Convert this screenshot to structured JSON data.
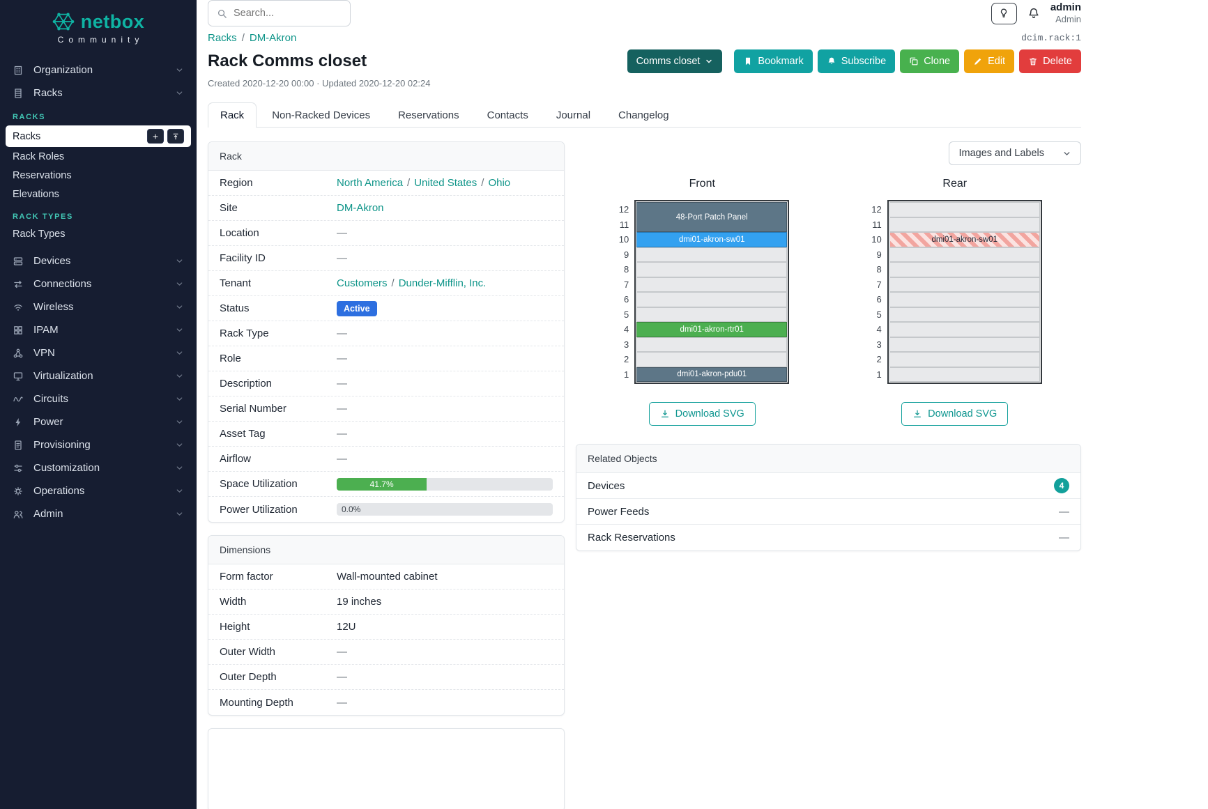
{
  "misc": {
    "slash": "/"
  },
  "brand": {
    "name": "netbox",
    "tagline": "Community"
  },
  "topbar": {
    "search_placeholder": "Search...",
    "user_name": "admin",
    "user_role": "Admin"
  },
  "sidebar": {
    "items": [
      {
        "key": "organization",
        "label": "Organization",
        "icon": "organization-icon"
      },
      {
        "key": "racks",
        "label": "Racks",
        "icon": "racks-icon"
      },
      {
        "key": "devices",
        "label": "Devices",
        "icon": "devices-icon"
      },
      {
        "key": "connections",
        "label": "Connections",
        "icon": "connections-icon"
      },
      {
        "key": "wireless",
        "label": "Wireless",
        "icon": "wireless-icon"
      },
      {
        "key": "ipam",
        "label": "IPAM",
        "icon": "ipam-icon"
      },
      {
        "key": "vpn",
        "label": "VPN",
        "icon": "vpn-icon"
      },
      {
        "key": "virtualization",
        "label": "Virtualization",
        "icon": "virtualization-icon"
      },
      {
        "key": "circuits",
        "label": "Circuits",
        "icon": "circuits-icon"
      },
      {
        "key": "power",
        "label": "Power",
        "icon": "power-icon"
      },
      {
        "key": "provisioning",
        "label": "Provisioning",
        "icon": "provisioning-icon"
      },
      {
        "key": "customization",
        "label": "Customization",
        "icon": "customization-icon"
      },
      {
        "key": "operations",
        "label": "Operations",
        "icon": "operations-icon"
      },
      {
        "key": "admin",
        "label": "Admin",
        "icon": "admin-icon"
      }
    ],
    "racks_submenu": {
      "groups": [
        {
          "header": "RACKS",
          "items": [
            {
              "label": "Racks",
              "active": true,
              "actions": true
            },
            {
              "label": "Rack Roles"
            },
            {
              "label": "Reservations"
            },
            {
              "label": "Elevations"
            }
          ]
        },
        {
          "header": "RACK TYPES",
          "items": [
            {
              "label": "Rack Types"
            }
          ]
        }
      ]
    }
  },
  "breadcrumb": {
    "items": [
      "Racks",
      "DM-Akron"
    ]
  },
  "page": {
    "title": "Rack Comms closet",
    "meta": "Created 2020-12-20 00:00 · Updated 2020-12-20 02:24",
    "object_ref": "dcim.rack:1"
  },
  "actions": {
    "context_label": "Comms closet",
    "bookmark": "Bookmark",
    "subscribe": "Subscribe",
    "clone": "Clone",
    "edit": "Edit",
    "delete": "Delete"
  },
  "tabs": [
    {
      "label": "Rack",
      "active": true
    },
    {
      "label": "Non-Racked Devices"
    },
    {
      "label": "Reservations"
    },
    {
      "label": "Contacts"
    },
    {
      "label": "Journal"
    },
    {
      "label": "Changelog"
    }
  ],
  "rack_panel": {
    "title": "Rack",
    "labels": {
      "region": "Region",
      "site": "Site",
      "location": "Location",
      "facility_id": "Facility ID",
      "tenant": "Tenant",
      "status": "Status",
      "rack_type": "Rack Type",
      "role": "Role",
      "description": "Description",
      "serial": "Serial Number",
      "asset_tag": "Asset Tag",
      "airflow": "Airflow",
      "space_util": "Space Utilization",
      "power_util": "Power Utilization"
    },
    "values": {
      "region_links": [
        "North America",
        "United States",
        "Ohio"
      ],
      "site_link": "DM-Akron",
      "location": "—",
      "facility_id": "—",
      "tenant_links": [
        "Customers",
        "Dunder-Mifflin, Inc."
      ],
      "status": "Active",
      "rack_type": "—",
      "role": "—",
      "description": "—",
      "serial": "—",
      "asset_tag": "—",
      "airflow": "—",
      "space_util_pct": 41.7,
      "space_util_label": "41.7%",
      "power_util_pct": 0.0,
      "power_util_label": "0.0%"
    }
  },
  "dimensions_panel": {
    "title": "Dimensions",
    "labels": {
      "form_factor": "Form factor",
      "width": "Width",
      "height": "Height",
      "outer_width": "Outer Width",
      "outer_depth": "Outer Depth",
      "mounting_depth": "Mounting Depth"
    },
    "values": {
      "form_factor": "Wall-mounted cabinet",
      "width": "19 inches",
      "height": "12U",
      "outer_width": "—",
      "outer_depth": "—",
      "mounting_depth": "—"
    }
  },
  "elevations": {
    "toggle_label": "Images and Labels",
    "download_label": "Download SVG",
    "front": {
      "title": "Front",
      "units_total": 12,
      "devices": [
        {
          "name": "48-Port Patch Panel",
          "top_unit": 12,
          "u_height": 2,
          "color": "#5d7687",
          "text_color": "#ffffff",
          "style": "solid"
        },
        {
          "name": "dmi01-akron-sw01",
          "top_unit": 10,
          "u_height": 1,
          "color": "#33a1f0",
          "text_color": "#ffffff",
          "style": "solid"
        },
        {
          "name": "dmi01-akron-rtr01",
          "top_unit": 4,
          "u_height": 1,
          "color": "#4caf50",
          "text_color": "#ffffff",
          "style": "solid"
        },
        {
          "name": "dmi01-akron-pdu01",
          "top_unit": 1,
          "u_height": 1,
          "color": "#5d7687",
          "text_color": "#ffffff",
          "style": "solid"
        }
      ]
    },
    "rear": {
      "title": "Rear",
      "units_total": 12,
      "devices": [
        {
          "name": "dmi01-akron-sw01",
          "top_unit": 10,
          "u_height": 1,
          "color": "#f2a59f",
          "color2": "#fbe3e1",
          "text_color": "#1f2937",
          "style": "striped"
        }
      ]
    }
  },
  "related_objects": {
    "title": "Related Objects",
    "rows": [
      {
        "label": "Devices",
        "badge": "4"
      },
      {
        "label": "Power Feeds",
        "value": "—"
      },
      {
        "label": "Rack Reservations",
        "value": "—"
      }
    ]
  },
  "colors": {
    "accent_teal": "#11a2a2",
    "link_teal": "#0d9488",
    "status_active_blue": "#2d6fe0",
    "utilization_green": "#4caf50",
    "clone_green": "#48b14e",
    "edit_amber": "#f0a30b",
    "delete_red": "#e23d3d",
    "sidebar_navy": "#161d31"
  }
}
